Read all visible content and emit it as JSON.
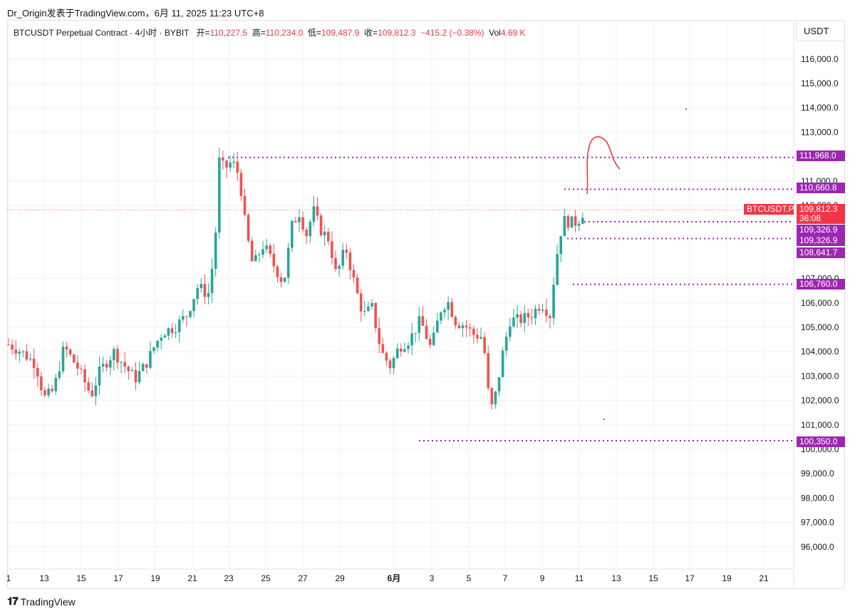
{
  "caption": "Dr_Origin发表于TradingView.com，6月 11, 2025 11:23 UTC+8",
  "legend": {
    "symbol": "BTCUSDT Perpetual Contract · 4小时 · BYBIT",
    "open_label": "开=",
    "open": "110,227.5",
    "high_label": "高=",
    "high": "110,234.0",
    "low_label": "低=",
    "low": "109,487.9",
    "close_label": "收=",
    "close": "109,812.3",
    "change": "−415.2 (−0.38%)",
    "vol_label": "Vol",
    "vol": "4.69 K"
  },
  "currency": "USDT",
  "y_ticks": [
    "116,000.0",
    "115,000.0",
    "114,000.0",
    "113,000.0",
    "111,000.0",
    "110,000.0",
    "107,000.0",
    "106,000.0",
    "105,000.0",
    "104,000.0",
    "103,000.0",
    "102,000.0",
    "101,000.0",
    "100,000.0",
    "99,000.0",
    "98,000.0",
    "97,000.0",
    "96,000.0"
  ],
  "y_tick_values": [
    116000,
    115000,
    114000,
    113000,
    111000,
    110000,
    107000,
    106000,
    105000,
    104000,
    103000,
    102000,
    101000,
    100000,
    99000,
    98000,
    97000,
    96000
  ],
  "x_ticks": [
    "1",
    "13",
    "15",
    "17",
    "19",
    "21",
    "23",
    "25",
    "27",
    "29",
    "6月",
    "3",
    "5",
    "7",
    "9",
    "11",
    "13",
    "15",
    "17",
    "19",
    "21"
  ],
  "price_badges": [
    {
      "value": "111,968.0",
      "price": 111968
    },
    {
      "value": "110,660.8",
      "price": 110660.8
    },
    {
      "value": "109,326.9",
      "price": 109326.9
    },
    {
      "value": "109,326.9",
      "price": 109326.9
    },
    {
      "value": "108,641.7",
      "price": 108641.7
    },
    {
      "value": "106,760.0",
      "price": 106760
    },
    {
      "value": "100,350.0",
      "price": 100350
    }
  ],
  "last_price": {
    "symbol": "BTCUSDT.P",
    "value": "109,812.3",
    "countdown": "36:08"
  },
  "footer": {
    "logo": "TradingView"
  },
  "colors": {
    "up": "#26a69a",
    "down": "#ef5350",
    "level": "#9c27b0",
    "badge_purple": "#9c27b0",
    "last": "#f23645"
  },
  "chart_data": {
    "type": "candlestick",
    "symbol": "BTCUSDT.P",
    "interval": "4小时",
    "ylim": [
      95500,
      117000
    ],
    "grid": true,
    "levels": [
      111968,
      110660.8,
      109326.9,
      108641.7,
      106760,
      100350
    ],
    "last_close": 109812.3
  }
}
